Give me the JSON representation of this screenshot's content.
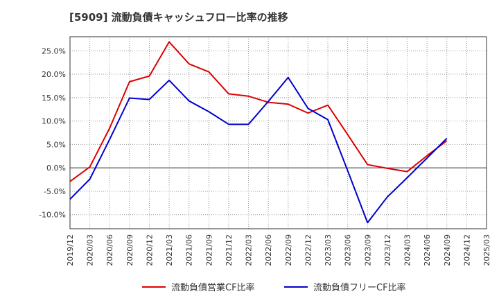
{
  "title": "[5909]  流動負債キャッシュフロー比率の推移",
  "colors": {
    "series1": "#dd0000",
    "series2": "#0000cc",
    "grid": "#999999",
    "axis": "#333333",
    "zero": "#333333"
  },
  "chart_data": {
    "type": "line",
    "title": "[5909]  流動負債キャッシュフロー比率の推移",
    "xlabel": "",
    "ylabel": "",
    "x": [
      "2019/12",
      "2020/03",
      "2020/06",
      "2020/09",
      "2020/12",
      "2021/03",
      "2021/06",
      "2021/09",
      "2021/12",
      "2022/03",
      "2022/06",
      "2022/09",
      "2022/12",
      "2023/03",
      "2023/06",
      "2023/09",
      "2023/12",
      "2024/03",
      "2024/06",
      "2024/09",
      "2024/12",
      "2025/03"
    ],
    "ylim": [
      -13.0,
      28.0
    ],
    "yticks": [
      -10,
      -5,
      0,
      5,
      10,
      15,
      20,
      25
    ],
    "ytick_labels": [
      "-10.0%",
      "-5.0%",
      "0.0%",
      "5.0%",
      "10.0%",
      "15.0%",
      "20.0%",
      "25.0%"
    ],
    "grid": true,
    "legend_position": "bottom",
    "series": [
      {
        "name": "流動負債営業CF比率",
        "color": "#dd0000",
        "values": [
          -2.9,
          0.2,
          8.5,
          18.4,
          19.6,
          26.9,
          22.2,
          20.5,
          15.8,
          15.3,
          14.0,
          13.6,
          11.7,
          13.4,
          7.1,
          0.7,
          -0.1,
          -0.8,
          2.6,
          5.8,
          null,
          null
        ]
      },
      {
        "name": "流動負債フリーCF比率",
        "color": "#0000cc",
        "values": [
          -6.7,
          -2.4,
          6.1,
          14.9,
          14.6,
          18.7,
          14.3,
          12.0,
          9.3,
          9.3,
          14.2,
          19.3,
          12.7,
          10.3,
          -0.6,
          -11.7,
          -6.2,
          -2.1,
          2.1,
          6.3,
          null,
          null
        ]
      }
    ]
  },
  "legend": {
    "items": [
      {
        "label": "流動負債営業CF比率",
        "color": "#dd0000"
      },
      {
        "label": "流動負債フリーCF比率",
        "color": "#0000cc"
      }
    ]
  }
}
